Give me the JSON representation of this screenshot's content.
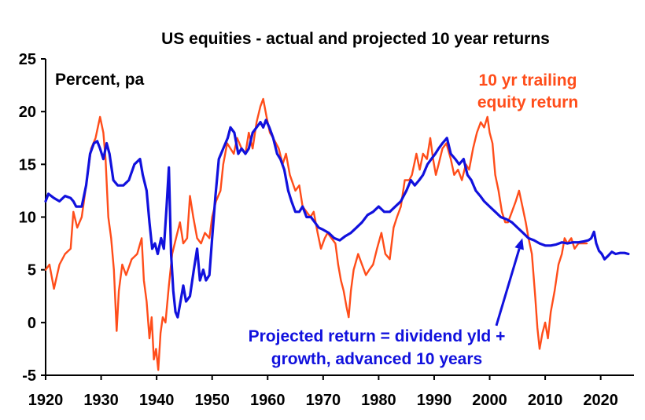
{
  "chart_data": {
    "type": "line",
    "title": "US equities - actual and projected 10 year returns",
    "unit_label": "Percent, pa",
    "xlabel": "",
    "ylabel": "",
    "xlim": [
      1920,
      2026
    ],
    "ylim": [
      -5,
      25
    ],
    "x_ticks": [
      "1920",
      "1930",
      "1940",
      "1950",
      "1960",
      "1970",
      "1980",
      "1990",
      "2000",
      "2010",
      "2020"
    ],
    "y_ticks": [
      "25",
      "20",
      "15",
      "10",
      "5",
      "0",
      "-5"
    ],
    "grid": false,
    "legend": "none (direct labels)",
    "series": [
      {
        "name": "10 yr trailing equity return",
        "label_lines": [
          "10 yr trailing",
          "equity return"
        ],
        "color": "#ff4d1a",
        "points": [
          [
            1920.0,
            5.0
          ],
          [
            1920.7,
            5.5
          ],
          [
            1921.5,
            3.2
          ],
          [
            1922.5,
            5.5
          ],
          [
            1923.5,
            6.5
          ],
          [
            1924.5,
            7.0
          ],
          [
            1925.0,
            10.5
          ],
          [
            1925.7,
            9.0
          ],
          [
            1926.5,
            10.0
          ],
          [
            1927.3,
            13.0
          ],
          [
            1928.2,
            16.5
          ],
          [
            1929.0,
            17.5
          ],
          [
            1929.8,
            19.5
          ],
          [
            1930.4,
            18.0
          ],
          [
            1930.8,
            15.5
          ],
          [
            1931.3,
            10.0
          ],
          [
            1931.8,
            8.0
          ],
          [
            1932.3,
            5.0
          ],
          [
            1932.8,
            -0.8
          ],
          [
            1933.2,
            3.0
          ],
          [
            1933.8,
            5.5
          ],
          [
            1934.5,
            4.5
          ],
          [
            1935.5,
            6.0
          ],
          [
            1936.5,
            6.5
          ],
          [
            1937.3,
            8.0
          ],
          [
            1937.7,
            4.0
          ],
          [
            1938.2,
            2.0
          ],
          [
            1938.7,
            -1.5
          ],
          [
            1939.1,
            0.5
          ],
          [
            1939.5,
            -3.5
          ],
          [
            1939.9,
            -2.5
          ],
          [
            1940.3,
            -4.5
          ],
          [
            1940.7,
            -1.0
          ],
          [
            1941.1,
            0.5
          ],
          [
            1941.6,
            0.0
          ],
          [
            1942.2,
            3.5
          ],
          [
            1942.8,
            6.5
          ],
          [
            1943.5,
            8.0
          ],
          [
            1944.2,
            9.5
          ],
          [
            1944.8,
            7.5
          ],
          [
            1945.5,
            8.0
          ],
          [
            1946.0,
            12.0
          ],
          [
            1946.6,
            10.0
          ],
          [
            1947.3,
            8.0
          ],
          [
            1948.0,
            7.5
          ],
          [
            1948.7,
            8.5
          ],
          [
            1949.5,
            8.0
          ],
          [
            1950.0,
            10.0
          ],
          [
            1950.7,
            11.5
          ],
          [
            1951.5,
            12.5
          ],
          [
            1952.0,
            15.0
          ],
          [
            1952.7,
            17.0
          ],
          [
            1953.3,
            16.5
          ],
          [
            1953.9,
            16.0
          ],
          [
            1954.5,
            17.5
          ],
          [
            1955.3,
            16.5
          ],
          [
            1956.0,
            16.0
          ],
          [
            1956.6,
            18.0
          ],
          [
            1957.3,
            16.5
          ],
          [
            1958.0,
            19.0
          ],
          [
            1958.7,
            20.5
          ],
          [
            1959.2,
            21.2
          ],
          [
            1959.8,
            19.5
          ],
          [
            1960.4,
            18.0
          ],
          [
            1961.0,
            17.5
          ],
          [
            1962.0,
            16.5
          ],
          [
            1962.7,
            15.0
          ],
          [
            1963.3,
            16.0
          ],
          [
            1964.0,
            14.0
          ],
          [
            1965.0,
            12.5
          ],
          [
            1965.7,
            13.0
          ],
          [
            1966.3,
            11.0
          ],
          [
            1967.0,
            10.5
          ],
          [
            1967.7,
            10.0
          ],
          [
            1968.3,
            10.5
          ],
          [
            1969.0,
            8.5
          ],
          [
            1969.6,
            7.0
          ],
          [
            1970.3,
            8.0
          ],
          [
            1970.8,
            8.5
          ],
          [
            1971.5,
            8.0
          ],
          [
            1972.2,
            7.5
          ],
          [
            1972.7,
            5.5
          ],
          [
            1973.2,
            4.0
          ],
          [
            1973.7,
            3.0
          ],
          [
            1974.2,
            1.5
          ],
          [
            1974.6,
            0.5
          ],
          [
            1975.0,
            3.0
          ],
          [
            1975.5,
            5.0
          ],
          [
            1976.3,
            6.5
          ],
          [
            1977.0,
            5.5
          ],
          [
            1977.7,
            4.5
          ],
          [
            1978.3,
            5.0
          ],
          [
            1979.0,
            5.5
          ],
          [
            1979.7,
            7.0
          ],
          [
            1980.5,
            8.5
          ],
          [
            1981.2,
            6.5
          ],
          [
            1982.0,
            6.0
          ],
          [
            1982.7,
            9.0
          ],
          [
            1983.3,
            10.0
          ],
          [
            1984.0,
            11.0
          ],
          [
            1984.7,
            13.5
          ],
          [
            1985.5,
            13.5
          ],
          [
            1986.0,
            14.0
          ],
          [
            1986.8,
            16.0
          ],
          [
            1987.4,
            14.5
          ],
          [
            1988.0,
            16.0
          ],
          [
            1988.7,
            15.5
          ],
          [
            1989.3,
            17.5
          ],
          [
            1989.8,
            15.5
          ],
          [
            1990.3,
            14.0
          ],
          [
            1990.8,
            15.0
          ],
          [
            1991.5,
            16.5
          ],
          [
            1992.2,
            17.0
          ],
          [
            1993.0,
            15.5
          ],
          [
            1993.6,
            14.0
          ],
          [
            1994.3,
            14.5
          ],
          [
            1995.0,
            13.5
          ],
          [
            1995.7,
            15.0
          ],
          [
            1996.3,
            14.5
          ],
          [
            1997.0,
            16.5
          ],
          [
            1997.7,
            18.0
          ],
          [
            1998.4,
            19.0
          ],
          [
            1999.0,
            18.5
          ],
          [
            1999.6,
            19.5
          ],
          [
            2000.0,
            18.0
          ],
          [
            2000.5,
            17.0
          ],
          [
            2001.0,
            14.0
          ],
          [
            2001.6,
            12.5
          ],
          [
            2002.2,
            10.5
          ],
          [
            2002.8,
            9.5
          ],
          [
            2003.3,
            9.5
          ],
          [
            2004.0,
            10.5
          ],
          [
            2004.7,
            11.5
          ],
          [
            2005.3,
            12.5
          ],
          [
            2005.9,
            11.0
          ],
          [
            2006.5,
            9.5
          ],
          [
            2007.0,
            8.0
          ],
          [
            2007.6,
            6.5
          ],
          [
            2008.2,
            2.5
          ],
          [
            2008.6,
            -0.5
          ],
          [
            2009.0,
            -2.5
          ],
          [
            2009.5,
            -1.0
          ],
          [
            2010.0,
            0.0
          ],
          [
            2010.5,
            -1.5
          ],
          [
            2011.0,
            1.0
          ],
          [
            2011.7,
            3.0
          ],
          [
            2012.4,
            5.5
          ],
          [
            2013.0,
            6.5
          ],
          [
            2013.5,
            8.0
          ],
          [
            2014.0,
            7.5
          ],
          [
            2014.7,
            8.0
          ],
          [
            2015.3,
            7.0
          ],
          [
            2016.0,
            7.5
          ],
          [
            2016.7,
            7.5
          ],
          [
            2017.5,
            7.5
          ]
        ]
      },
      {
        "name": "Projected return = dividend yld + growth, advanced 10 years",
        "label_lines": [
          "Projected return = dividend yld +",
          "growth, advanced 10 years"
        ],
        "color": "#1111dd",
        "points": [
          [
            1920.0,
            11.5
          ],
          [
            1920.5,
            12.2
          ],
          [
            1921.5,
            11.8
          ],
          [
            1922.5,
            11.5
          ],
          [
            1923.5,
            12.0
          ],
          [
            1924.5,
            11.8
          ],
          [
            1925.0,
            11.5
          ],
          [
            1925.5,
            11.0
          ],
          [
            1926.5,
            11.0
          ],
          [
            1927.3,
            13.0
          ],
          [
            1928.0,
            16.0
          ],
          [
            1928.7,
            17.0
          ],
          [
            1929.3,
            17.2
          ],
          [
            1929.8,
            16.5
          ],
          [
            1930.4,
            15.5
          ],
          [
            1931.0,
            17.0
          ],
          [
            1931.5,
            16.0
          ],
          [
            1932.2,
            13.5
          ],
          [
            1933.0,
            13.0
          ],
          [
            1934.0,
            13.0
          ],
          [
            1935.0,
            13.5
          ],
          [
            1936.0,
            15.0
          ],
          [
            1937.0,
            15.5
          ],
          [
            1937.5,
            14.0
          ],
          [
            1938.2,
            12.5
          ],
          [
            1938.7,
            9.5
          ],
          [
            1939.2,
            7.0
          ],
          [
            1939.7,
            7.5
          ],
          [
            1940.2,
            6.5
          ],
          [
            1940.8,
            8.0
          ],
          [
            1941.3,
            7.0
          ],
          [
            1941.8,
            11.0
          ],
          [
            1942.2,
            14.7
          ],
          [
            1942.6,
            6.5
          ],
          [
            1943.0,
            3.0
          ],
          [
            1943.4,
            1.0
          ],
          [
            1943.8,
            0.5
          ],
          [
            1944.3,
            2.0
          ],
          [
            1944.8,
            3.5
          ],
          [
            1945.3,
            2.0
          ],
          [
            1946.0,
            2.5
          ],
          [
            1946.7,
            5.0
          ],
          [
            1947.3,
            7.0
          ],
          [
            1947.8,
            4.0
          ],
          [
            1948.4,
            5.0
          ],
          [
            1948.9,
            4.0
          ],
          [
            1949.5,
            4.5
          ],
          [
            1950.0,
            8.0
          ],
          [
            1950.6,
            12.0
          ],
          [
            1951.2,
            15.5
          ],
          [
            1952.0,
            16.5
          ],
          [
            1952.8,
            17.5
          ],
          [
            1953.3,
            18.5
          ],
          [
            1954.0,
            18.0
          ],
          [
            1954.7,
            16.0
          ],
          [
            1955.3,
            16.5
          ],
          [
            1956.0,
            16.0
          ],
          [
            1956.6,
            16.5
          ],
          [
            1957.3,
            18.0
          ],
          [
            1958.0,
            18.5
          ],
          [
            1958.7,
            19.0
          ],
          [
            1959.2,
            18.5
          ],
          [
            1959.7,
            19.2
          ],
          [
            1960.3,
            18.5
          ],
          [
            1961.0,
            17.5
          ],
          [
            1961.7,
            16.0
          ],
          [
            1962.3,
            15.5
          ],
          [
            1963.0,
            14.5
          ],
          [
            1963.7,
            12.5
          ],
          [
            1964.3,
            11.5
          ],
          [
            1965.0,
            10.5
          ],
          [
            1965.7,
            10.5
          ],
          [
            1966.3,
            11.0
          ],
          [
            1967.0,
            10.0
          ],
          [
            1967.8,
            10.0
          ],
          [
            1968.5,
            9.5
          ],
          [
            1969.2,
            9.0
          ],
          [
            1970.0,
            8.8
          ],
          [
            1971.0,
            8.5
          ],
          [
            1972.0,
            8.0
          ],
          [
            1973.0,
            7.8
          ],
          [
            1974.0,
            8.2
          ],
          [
            1975.0,
            8.5
          ],
          [
            1976.0,
            9.0
          ],
          [
            1977.0,
            9.5
          ],
          [
            1978.0,
            10.2
          ],
          [
            1979.0,
            10.5
          ],
          [
            1980.0,
            11.0
          ],
          [
            1981.0,
            10.5
          ],
          [
            1982.0,
            10.5
          ],
          [
            1983.0,
            11.0
          ],
          [
            1984.0,
            11.5
          ],
          [
            1985.0,
            12.5
          ],
          [
            1985.8,
            13.5
          ],
          [
            1986.5,
            13.0
          ],
          [
            1987.3,
            13.5
          ],
          [
            1988.0,
            14.0
          ],
          [
            1988.8,
            15.0
          ],
          [
            1989.5,
            15.5
          ],
          [
            1990.2,
            16.0
          ],
          [
            1990.8,
            16.5
          ],
          [
            1991.5,
            17.0
          ],
          [
            1992.3,
            17.5
          ],
          [
            1993.0,
            16.0
          ],
          [
            1993.8,
            15.5
          ],
          [
            1994.5,
            15.0
          ],
          [
            1995.3,
            15.5
          ],
          [
            1996.0,
            14.0
          ],
          [
            1996.7,
            13.5
          ],
          [
            1997.5,
            12.5
          ],
          [
            1998.3,
            12.0
          ],
          [
            1999.0,
            11.5
          ],
          [
            2000.0,
            11.0
          ],
          [
            2001.0,
            10.5
          ],
          [
            2002.0,
            10.0
          ],
          [
            2003.0,
            9.8
          ],
          [
            2004.0,
            9.5
          ],
          [
            2005.0,
            9.0
          ],
          [
            2006.0,
            8.5
          ],
          [
            2007.0,
            8.0
          ],
          [
            2008.0,
            7.8
          ],
          [
            2009.0,
            7.5
          ],
          [
            2010.0,
            7.3
          ],
          [
            2011.0,
            7.3
          ],
          [
            2012.0,
            7.4
          ],
          [
            2013.0,
            7.6
          ],
          [
            2014.0,
            7.5
          ],
          [
            2015.0,
            7.6
          ],
          [
            2016.0,
            7.6
          ],
          [
            2017.0,
            7.7
          ],
          [
            2017.8,
            7.8
          ],
          [
            2018.3,
            8.0
          ],
          [
            2018.8,
            8.6
          ],
          [
            2019.2,
            7.5
          ],
          [
            2019.7,
            6.8
          ],
          [
            2020.2,
            6.5
          ],
          [
            2020.7,
            6.0
          ],
          [
            2021.3,
            6.3
          ],
          [
            2022.0,
            6.7
          ],
          [
            2022.7,
            6.5
          ],
          [
            2023.5,
            6.6
          ],
          [
            2024.3,
            6.6
          ],
          [
            2025.0,
            6.5
          ]
        ]
      }
    ],
    "annotations": [
      {
        "type": "arrow",
        "color": "#1111dd",
        "from": [
          2001.2,
          -0.3
        ],
        "to": [
          2005.9,
          8.0
        ]
      }
    ]
  }
}
